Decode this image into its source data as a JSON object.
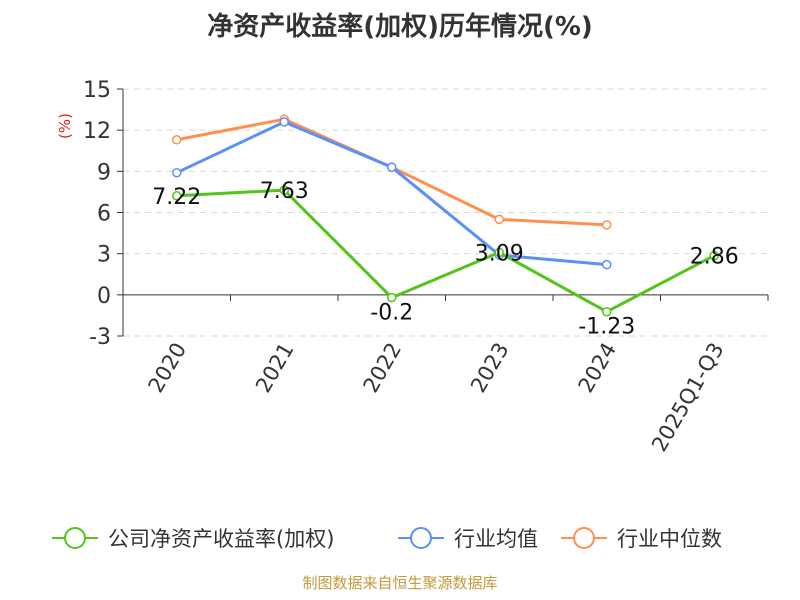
{
  "chart_data": {
    "type": "line",
    "title": "净资产收益率(加权)历年情况(%)",
    "ylabel": "(%)",
    "xlabel": "",
    "categories": [
      "2020",
      "2021",
      "2022",
      "2023",
      "2024",
      "2025Q1-Q3"
    ],
    "ylim": [
      -3,
      15
    ],
    "yticks": [
      -3,
      0,
      3,
      6,
      9,
      12,
      15
    ],
    "grid": true,
    "legend_position": "bottom",
    "series": [
      {
        "name": "公司净资产收益率(加权)",
        "color": "#52c41a",
        "values": [
          7.22,
          7.63,
          -0.2,
          3.09,
          -1.23,
          2.86
        ],
        "labels": [
          "7.22",
          "7.63",
          "-0.2",
          "3.09",
          "-1.23",
          "2.86"
        ]
      },
      {
        "name": "行业均值",
        "color": "#5b8ff9",
        "values": [
          8.9,
          12.6,
          9.3,
          2.9,
          2.2,
          null
        ]
      },
      {
        "name": "行业中位数",
        "color": "#ff8f4f",
        "values": [
          11.3,
          12.8,
          9.3,
          5.5,
          5.1,
          null
        ]
      }
    ]
  },
  "source": "制图数据来自恒生聚源数据库"
}
